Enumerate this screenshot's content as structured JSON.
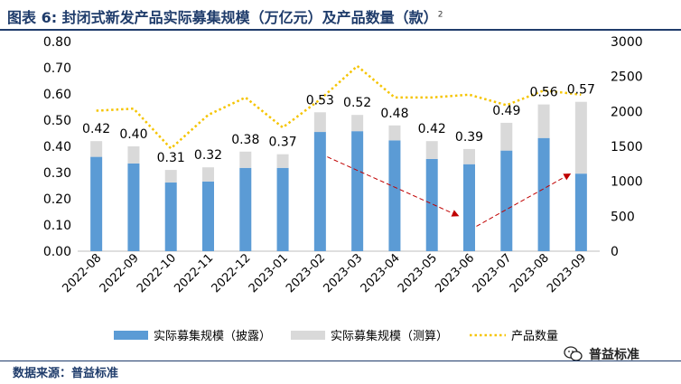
{
  "figure": {
    "title": "图表 6: 封闭式新发产品实际募集规模（万亿元）及产品数量（款）",
    "title_superscript": "2",
    "source": "数据来源：普益标准",
    "watermark": "普益标准"
  },
  "chart_data": {
    "type": "bar",
    "stacked": true,
    "categories": [
      "2022-08",
      "2022-09",
      "2022-10",
      "2022-11",
      "2022-12",
      "2023-01",
      "2023-02",
      "2023-03",
      "2023-04",
      "2023-05",
      "2023-06",
      "2023-07",
      "2023-08",
      "2023-09"
    ],
    "series": [
      {
        "name": "实际募集规模（披露）",
        "kind": "bar",
        "axis": "left",
        "color": "#5B9BD5",
        "values": [
          0.36,
          0.335,
          0.262,
          0.266,
          0.318,
          0.318,
          0.455,
          0.458,
          0.423,
          0.352,
          0.332,
          0.384,
          0.432,
          0.296
        ]
      },
      {
        "name": "实际募集规模（测算）",
        "kind": "bar",
        "axis": "left",
        "color": "#D9D9D9",
        "values": [
          0.06,
          0.065,
          0.048,
          0.054,
          0.062,
          0.052,
          0.075,
          0.062,
          0.057,
          0.068,
          0.058,
          0.106,
          0.128,
          0.274
        ]
      },
      {
        "name": "产品数量",
        "kind": "line",
        "axis": "right",
        "color": "#F5C400",
        "dash": "dotted",
        "values": [
          2010,
          2040,
          1470,
          1950,
          2200,
          1770,
          2170,
          2650,
          2200,
          2200,
          2240,
          2090,
          2300,
          2240
        ]
      }
    ],
    "total_labels": [
      "0.42",
      "0.40",
      "0.31",
      "0.32",
      "0.38",
      "0.37",
      "0.53",
      "0.52",
      "0.48",
      "0.42",
      "0.39",
      "0.49",
      "0.56",
      "0.57"
    ],
    "y_left": {
      "min": 0,
      "max": 0.8,
      "ticks": [
        "0.00",
        "0.10",
        "0.20",
        "0.30",
        "0.40",
        "0.50",
        "0.60",
        "0.70",
        "0.80"
      ]
    },
    "y_right": {
      "min": 0,
      "max": 3000,
      "ticks": [
        "0",
        "500",
        "1000",
        "1500",
        "2000",
        "2500",
        "3000"
      ]
    },
    "legend_position": "bottom",
    "annotations": [
      {
        "type": "dashed-arrow",
        "color": "#C00000",
        "from": {
          "category": "2023-02",
          "y": 0.36
        },
        "to": {
          "category": "2023-06",
          "y": 0.135
        }
      },
      {
        "type": "dashed-arrow",
        "color": "#C00000",
        "from": {
          "category": "2023-06",
          "y": 0.095
        },
        "to": {
          "category": "2023-09",
          "y": 0.295
        }
      }
    ]
  }
}
